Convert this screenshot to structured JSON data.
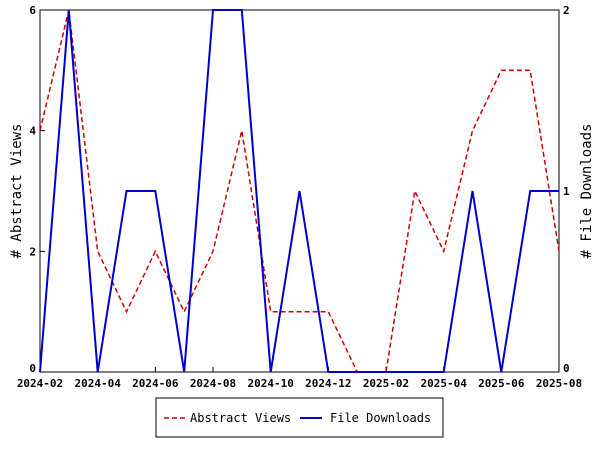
{
  "chart_data": {
    "type": "line",
    "x": [
      "2024-02",
      "2024-03",
      "2024-04",
      "2024-05",
      "2024-06",
      "2024-07",
      "2024-08",
      "2024-09",
      "2024-10",
      "2024-11",
      "2024-12",
      "2025-01",
      "2025-02",
      "2025-03",
      "2025-04",
      "2025-05",
      "2025-06",
      "2025-07",
      "2025-08"
    ],
    "x_ticks": [
      "2024-02",
      "2024-04",
      "2024-06",
      "2024-08",
      "2024-10",
      "2024-12",
      "2025-02",
      "2025-04",
      "2025-06",
      "2025-08"
    ],
    "series": [
      {
        "name": "Abstract Views",
        "axis": "left",
        "color": "#cc0000",
        "style": "dashed",
        "values": [
          4,
          6,
          2,
          1,
          2,
          1,
          2,
          4,
          1,
          1,
          1,
          0,
          0,
          3,
          2,
          4,
          5,
          5,
          2
        ]
      },
      {
        "name": "File Downloads",
        "axis": "right",
        "color": "#0000cc",
        "style": "solid",
        "values": [
          0,
          2,
          0,
          1,
          1,
          0,
          2,
          2,
          0,
          1,
          0,
          0,
          0,
          0,
          0,
          1,
          0,
          1,
          1
        ]
      }
    ],
    "ylabel": "# Abstract Views",
    "ylabel_right": "# File Downloads",
    "ylim": [
      0,
      6
    ],
    "y_ticks": [
      "0",
      "2",
      "4",
      "6"
    ],
    "ylim_right": [
      0,
      2
    ],
    "y_ticks_right": [
      "0",
      "1",
      "2"
    ],
    "grid": false,
    "legend": "bottom"
  }
}
